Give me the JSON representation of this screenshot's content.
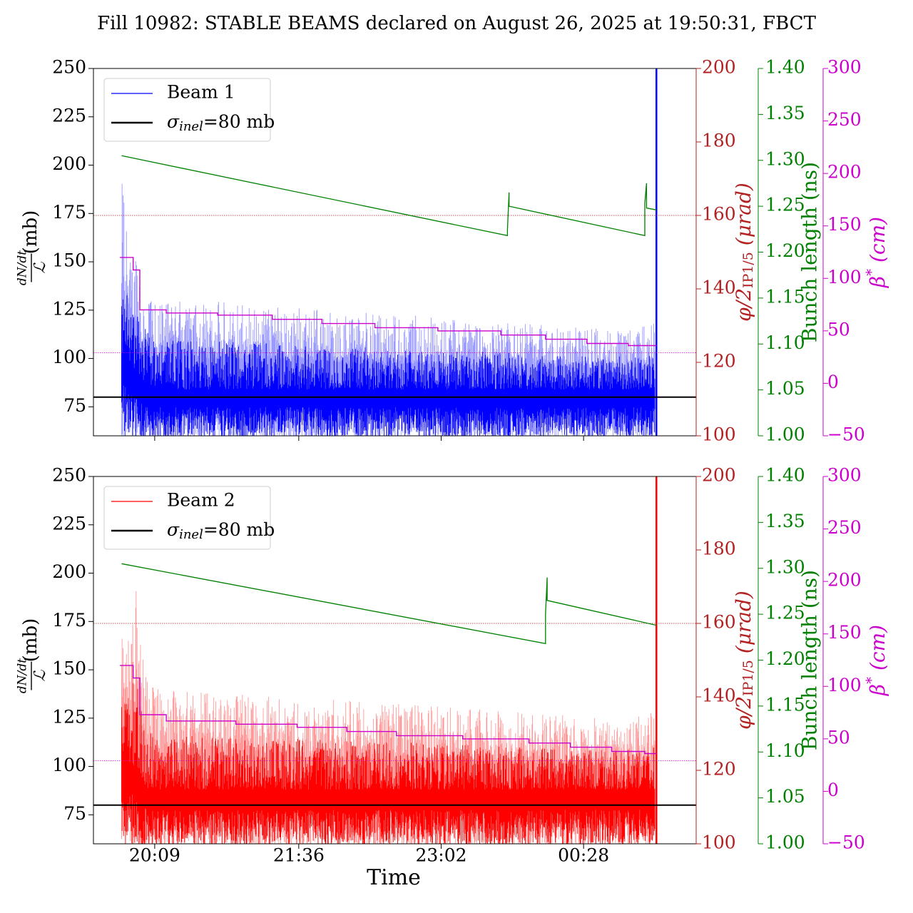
{
  "figure": {
    "title": "Fill 10982: STABLE BEAMS declared on August 26, 2025 at 19:50:31, FBCT",
    "xlabel": "Time"
  },
  "colors": {
    "beam1": "#0000ff",
    "beam1_light": "#9999ff",
    "beam2": "#ff0000",
    "beam2_light": "#ff9999",
    "ref_line": "#000000",
    "crossing": "#b22222",
    "bunch_length": "#008000",
    "beta_star": "#cc00cc"
  },
  "chart_data": [
    {
      "type": "line",
      "panel": "top",
      "x_ticks": [
        "20:09",
        "21:36",
        "23:02",
        "00:28"
      ],
      "x_tick_minutes": [
        19,
        106,
        192,
        278
      ],
      "x_range_minutes": [
        -18,
        346
      ],
      "data_range_minutes": [
        -2,
        322
      ],
      "ylabel": "dN/dt / ℒ (mb)",
      "ylim": [
        60,
        250
      ],
      "yticks": [
        75,
        100,
        125,
        150,
        175,
        200,
        225,
        250
      ],
      "legend": {
        "placement": "top-left",
        "entries": [
          "Beam 1",
          "σinel=80 mb"
        ]
      },
      "reference_line": {
        "label": "σinel=80 mb",
        "y": 80
      },
      "series": [
        {
          "name": "Beam 1",
          "color": "#0000ff",
          "approx_mean": 84,
          "approx_envelope_max": [
            [
              -1,
              205
            ],
            [
              0,
              185
            ],
            [
              3,
              160
            ],
            [
              10,
              145
            ],
            [
              20,
              130
            ],
            [
              60,
              130
            ],
            [
              120,
              125
            ],
            [
              180,
              122
            ],
            [
              240,
              118
            ],
            [
              300,
              115
            ],
            [
              320,
              118
            ]
          ],
          "approx_floor": 60,
          "spike_at_end": {
            "x": 322,
            "y_max": 250
          }
        }
      ],
      "crossing_axis": {
        "label": "φ/2IP1/5 (μrad)",
        "ylim": [
          100,
          200
        ],
        "yticks": [
          100,
          120,
          140,
          160,
          180,
          200
        ],
        "reference_values": [
          160,
          122.6
        ]
      },
      "bunch_length_axis": {
        "label": "Bunch length (ns)",
        "ylim": [
          1.0,
          1.4
        ],
        "yticks": [
          "1.00",
          "1.05",
          "1.10",
          "1.15",
          "1.20",
          "1.25",
          "1.30",
          "1.35",
          "1.40"
        ],
        "series": [
          [
            -1,
            1.305
          ],
          [
            232,
            1.218
          ],
          [
            232,
            1.224
          ],
          [
            233,
            1.265
          ],
          [
            233,
            1.25
          ],
          [
            315,
            1.218
          ],
          [
            315,
            1.253
          ],
          [
            316,
            1.275
          ],
          [
            316,
            1.248
          ],
          [
            322,
            1.246
          ]
        ]
      },
      "beta_star_axis": {
        "label": "β* (cm)",
        "ylim": [
          -50,
          300
        ],
        "yticks": [
          -50,
          0,
          50,
          100,
          150,
          200,
          250,
          300
        ],
        "steps": [
          [
            -2,
            120
          ],
          [
            6,
            120
          ],
          [
            6,
            108
          ],
          [
            10,
            108
          ],
          [
            10,
            70
          ],
          [
            26,
            70
          ],
          [
            26,
            67
          ],
          [
            57,
            67
          ],
          [
            57,
            65
          ],
          [
            90,
            65
          ],
          [
            90,
            61
          ],
          [
            120,
            61
          ],
          [
            120,
            57
          ],
          [
            152,
            57
          ],
          [
            152,
            53
          ],
          [
            190,
            53
          ],
          [
            190,
            50
          ],
          [
            228,
            50
          ],
          [
            228,
            46
          ],
          [
            255,
            46
          ],
          [
            255,
            42
          ],
          [
            280,
            42
          ],
          [
            280,
            38
          ],
          [
            305,
            38
          ],
          [
            305,
            36
          ],
          [
            322,
            36
          ]
        ]
      }
    },
    {
      "type": "line",
      "panel": "bottom",
      "x_ticks": [
        "20:09",
        "21:36",
        "23:02",
        "00:28"
      ],
      "x_tick_minutes": [
        19,
        106,
        192,
        278
      ],
      "x_range_minutes": [
        -18,
        346
      ],
      "data_range_minutes": [
        -2,
        322
      ],
      "ylabel": "dN/dt / ℒ (mb)",
      "ylim": [
        60,
        250
      ],
      "yticks": [
        75,
        100,
        125,
        150,
        175,
        200,
        225,
        250
      ],
      "legend": {
        "placement": "top-left",
        "entries": [
          "Beam 2",
          "σinel=80 mb"
        ]
      },
      "reference_line": {
        "label": "σinel=80 mb",
        "y": 80
      },
      "series": [
        {
          "name": "Beam 2",
          "color": "#ff0000",
          "approx_mean": 88,
          "approx_envelope_max": [
            [
              -1,
              183
            ],
            [
              5,
              168
            ],
            [
              8,
              205
            ],
            [
              10,
              168
            ],
            [
              20,
              140
            ],
            [
              60,
              138
            ],
            [
              120,
              135
            ],
            [
              180,
              132
            ],
            [
              240,
              128
            ],
            [
              300,
              125
            ],
            [
              320,
              128
            ]
          ],
          "approx_floor": 60,
          "spike_at_end": {
            "x": 322,
            "y_max": 250
          }
        }
      ],
      "crossing_axis": {
        "label": "φ/2IP1/5 (μrad)",
        "ylim": [
          100,
          200
        ],
        "yticks": [
          100,
          120,
          140,
          160,
          180,
          200
        ],
        "reference_values": [
          160,
          122.6
        ]
      },
      "bunch_length_axis": {
        "label": "Bunch length (ns)",
        "ylim": [
          1.0,
          1.4
        ],
        "yticks": [
          "1.00",
          "1.05",
          "1.10",
          "1.15",
          "1.20",
          "1.25",
          "1.30",
          "1.35",
          "1.40"
        ],
        "series": [
          [
            -1,
            1.305
          ],
          [
            255,
            1.218
          ],
          [
            255,
            1.25
          ],
          [
            256,
            1.29
          ],
          [
            256,
            1.265
          ],
          [
            322,
            1.238
          ]
        ]
      },
      "beta_star_axis": {
        "label": "β* (cm)",
        "ylim": [
          -50,
          300
        ],
        "yticks": [
          -50,
          0,
          50,
          100,
          150,
          200,
          250,
          300
        ],
        "steps": [
          [
            -2,
            120
          ],
          [
            6,
            120
          ],
          [
            6,
            108
          ],
          [
            10,
            108
          ],
          [
            10,
            73
          ],
          [
            26,
            73
          ],
          [
            26,
            67
          ],
          [
            68,
            67
          ],
          [
            68,
            64
          ],
          [
            105,
            64
          ],
          [
            105,
            61
          ],
          [
            135,
            61
          ],
          [
            135,
            57
          ],
          [
            165,
            57
          ],
          [
            165,
            53
          ],
          [
            205,
            53
          ],
          [
            205,
            50
          ],
          [
            245,
            50
          ],
          [
            245,
            46
          ],
          [
            270,
            46
          ],
          [
            270,
            42
          ],
          [
            295,
            42
          ],
          [
            295,
            38
          ],
          [
            315,
            38
          ],
          [
            315,
            36
          ],
          [
            322,
            36
          ]
        ]
      }
    }
  ]
}
